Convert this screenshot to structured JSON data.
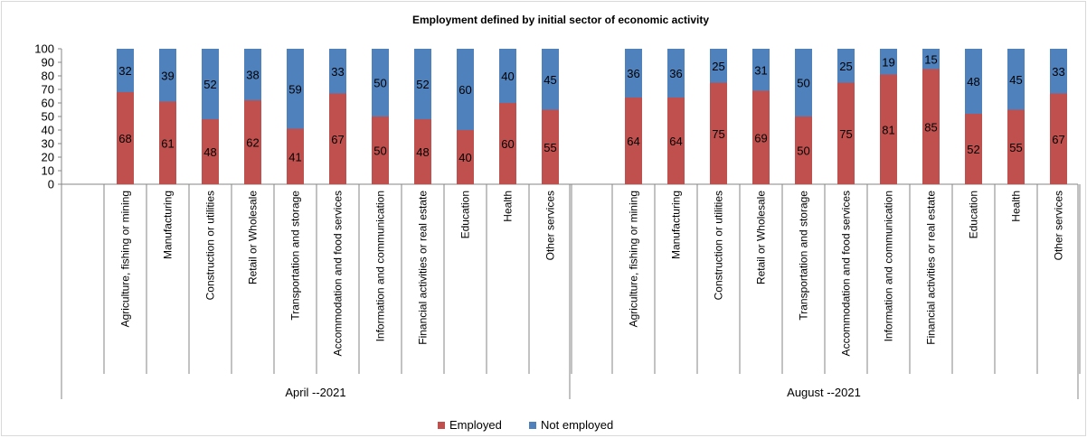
{
  "chart_data": {
    "type": "bar",
    "stacked": true,
    "title": "Employment defined by initial sector of economic activity",
    "xlabel": "",
    "ylabel": "",
    "ylim": [
      0,
      100
    ],
    "yticks": [
      0,
      10,
      20,
      30,
      40,
      50,
      60,
      70,
      80,
      90,
      100
    ],
    "grid": false,
    "legend_position": "bottom",
    "groups": [
      {
        "label": "April --2021",
        "categories": [
          "Agriculture, fishing or mining",
          "Manufacturing",
          "Construction or utilities",
          "Retail or Wholesale",
          "Transportation and storage",
          "Accommodation and food services",
          "Information and communication",
          "Financial activities or real estate",
          "Education",
          "Health",
          "Other services"
        ],
        "series": [
          {
            "name": "Employed",
            "color": "#c0504d",
            "values": [
              68,
              61,
              48,
              62,
              41,
              67,
              50,
              48,
              40,
              60,
              55
            ]
          },
          {
            "name": "Not employed",
            "color": "#4f81bd",
            "values": [
              32,
              39,
              52,
              38,
              59,
              33,
              50,
              52,
              60,
              40,
              45
            ]
          }
        ]
      },
      {
        "label": "August --2021",
        "categories": [
          "Agriculture, fishing or mining",
          "Manufacturing",
          "Construction or utilities",
          "Retail or Wholesale",
          "Transportation and storage",
          "Accommodation and food services",
          "Information and communication",
          "Financial activities or real estate",
          "Education",
          "Health",
          "Other services"
        ],
        "series": [
          {
            "name": "Employed",
            "color": "#c0504d",
            "values": [
              64,
              64,
              75,
              69,
              50,
              75,
              81,
              85,
              52,
              55,
              67
            ]
          },
          {
            "name": "Not employed",
            "color": "#4f81bd",
            "values": [
              36,
              36,
              25,
              31,
              50,
              25,
              19,
              15,
              48,
              45,
              33
            ]
          }
        ]
      }
    ]
  }
}
